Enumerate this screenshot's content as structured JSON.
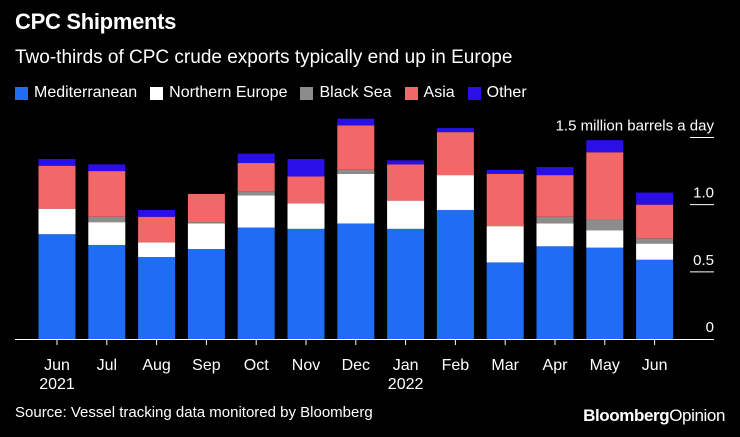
{
  "chart_data": {
    "type": "bar",
    "stacked": true,
    "title": "CPC Shipments",
    "subtitle": "Two-thirds of CPC crude exports typically end up in Europe",
    "ylabel": "1.5 million barrels a day",
    "yticks": [
      "1.5 million barrels a day",
      "1.0",
      "0.5",
      "0"
    ],
    "ytick_values": [
      1.5,
      1.0,
      0.5,
      0
    ],
    "ylim": [
      0,
      1.6
    ],
    "categories": [
      "Jun",
      "Jul",
      "Aug",
      "Sep",
      "Oct",
      "Nov",
      "Dec",
      "Jan",
      "Feb",
      "Mar",
      "Apr",
      "May",
      "Jun"
    ],
    "year_labels": [
      {
        "index": 0,
        "label": "2021"
      },
      {
        "index": 7,
        "label": "2022"
      }
    ],
    "series": [
      {
        "name": "Mediterranean",
        "color": "#1f6cf5",
        "values": [
          0.78,
          0.7,
          0.61,
          0.67,
          0.83,
          0.82,
          0.86,
          0.82,
          0.96,
          0.57,
          0.69,
          0.68,
          0.59
        ]
      },
      {
        "name": "Northern Europe",
        "color": "#ffffff",
        "values": [
          0.19,
          0.17,
          0.11,
          0.19,
          0.24,
          0.19,
          0.37,
          0.21,
          0.26,
          0.27,
          0.17,
          0.13,
          0.12
        ]
      },
      {
        "name": "Black Sea",
        "color": "#8c8c8c",
        "values": [
          0.0,
          0.04,
          0.0,
          0.01,
          0.03,
          0.0,
          0.03,
          0.0,
          0.0,
          0.0,
          0.05,
          0.08,
          0.04
        ]
      },
      {
        "name": "Asia",
        "color": "#f26767",
        "values": [
          0.32,
          0.34,
          0.19,
          0.21,
          0.21,
          0.2,
          0.33,
          0.27,
          0.32,
          0.39,
          0.31,
          0.5,
          0.25
        ]
      },
      {
        "name": "Other",
        "color": "#2a0fe8",
        "values": [
          0.05,
          0.05,
          0.05,
          0.0,
          0.07,
          0.13,
          0.05,
          0.03,
          0.03,
          0.03,
          0.06,
          0.09,
          0.09
        ]
      }
    ]
  },
  "footer": {
    "source": "Source: Vessel tracking data monitored by Bloomberg",
    "brand_bold": "Bloomberg",
    "brand_regular": "Opinion"
  }
}
